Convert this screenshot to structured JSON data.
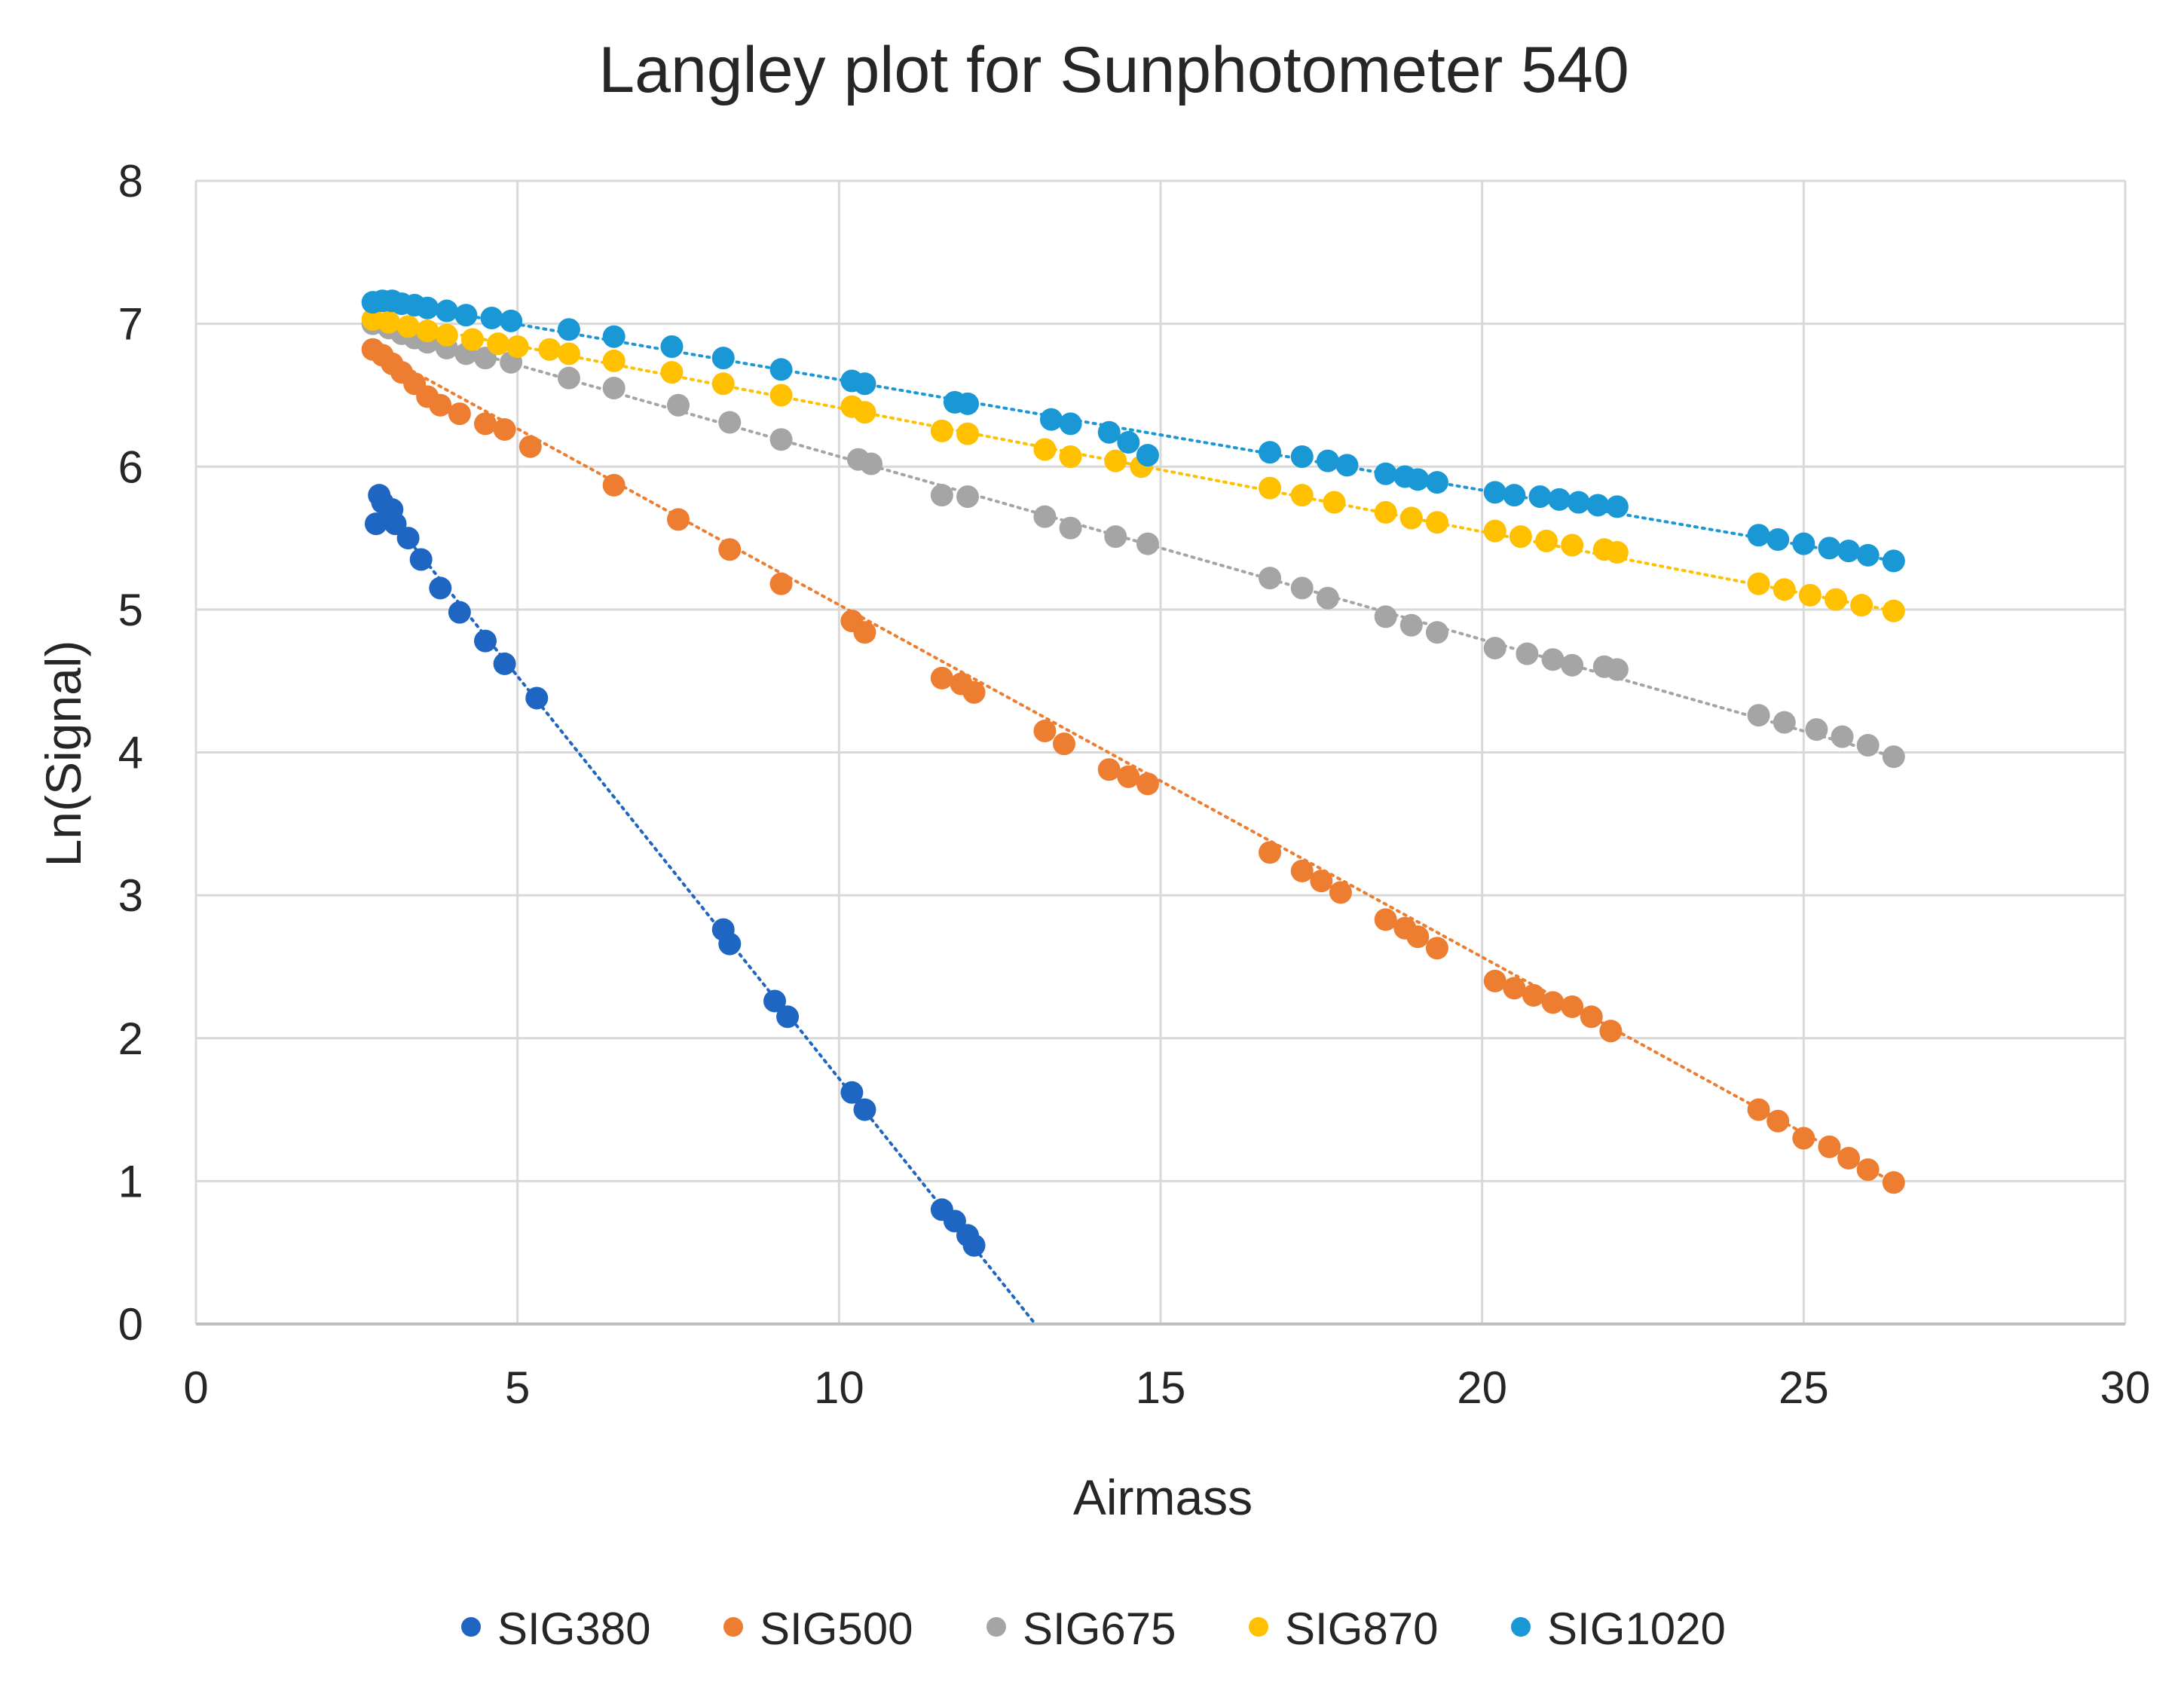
{
  "chart_data": {
    "type": "scatter",
    "title": "Langley plot for Sunphotometer 540",
    "xlabel": "Airmass",
    "ylabel": "Ln(Signal)",
    "xlim": [
      0,
      30
    ],
    "ylim": [
      0,
      8
    ],
    "xticks": [
      0,
      5,
      10,
      15,
      20,
      25,
      30
    ],
    "yticks": [
      0,
      1,
      2,
      3,
      4,
      5,
      6,
      7,
      8
    ],
    "xtick_labels": [
      "0",
      "5",
      "10",
      "15",
      "20",
      "25",
      "30"
    ],
    "ytick_labels": [
      "0",
      "1",
      "2",
      "3",
      "4",
      "5",
      "6",
      "7",
      "8"
    ],
    "grid": true,
    "legend_position": "bottom",
    "trendlines": "linear, dotted",
    "series": [
      {
        "name": "SIG380",
        "color": "#1F66C2",
        "x": [
          2.8,
          2.85,
          2.9,
          3.0,
          3.05,
          3.1,
          3.3,
          3.5,
          3.8,
          4.1,
          4.5,
          4.8,
          5.3,
          8.2,
          8.3,
          9.0,
          9.2,
          10.2,
          10.4,
          11.6,
          11.8,
          12.0,
          12.1
        ],
        "y": [
          5.6,
          5.8,
          5.75,
          5.65,
          5.7,
          5.6,
          5.5,
          5.35,
          5.15,
          4.98,
          4.78,
          4.62,
          4.38,
          2.76,
          2.66,
          2.26,
          2.15,
          1.62,
          1.5,
          0.8,
          0.72,
          0.62,
          0.55
        ],
        "trend": {
          "x": [
            2.75,
            13.05
          ],
          "y": [
            5.8,
            0.0
          ]
        }
      },
      {
        "name": "SIG500",
        "color": "#ED7D31",
        "x": [
          2.75,
          2.9,
          3.05,
          3.2,
          3.4,
          3.6,
          3.8,
          4.1,
          4.5,
          4.8,
          5.2,
          6.5,
          7.5,
          8.3,
          9.1,
          10.2,
          10.4,
          11.6,
          11.9,
          12.1,
          13.2,
          13.5,
          14.2,
          14.5,
          14.8,
          16.7,
          17.2,
          17.5,
          17.8,
          18.5,
          18.8,
          19.0,
          19.3,
          20.2,
          20.5,
          20.8,
          21.1,
          21.4,
          21.7,
          22.0,
          24.3,
          24.6,
          25.0,
          25.4,
          25.7,
          26.0,
          26.4
        ],
        "y": [
          6.82,
          6.78,
          6.72,
          6.66,
          6.58,
          6.49,
          6.43,
          6.37,
          6.3,
          6.26,
          6.14,
          5.87,
          5.63,
          5.42,
          5.18,
          4.92,
          4.84,
          4.52,
          4.48,
          4.42,
          4.15,
          4.06,
          3.88,
          3.83,
          3.78,
          3.3,
          3.17,
          3.1,
          3.02,
          2.83,
          2.77,
          2.71,
          2.63,
          2.4,
          2.35,
          2.3,
          2.25,
          2.22,
          2.15,
          2.05,
          1.5,
          1.42,
          1.3,
          1.24,
          1.16,
          1.08,
          0.99
        ],
        "trend": {
          "x": [
            2.75,
            26.4
          ],
          "y": [
            6.82,
            0.99
          ]
        }
      },
      {
        "name": "SIG675",
        "color": "#A5A5A5",
        "x": [
          2.75,
          3.0,
          3.2,
          3.4,
          3.6,
          3.9,
          4.2,
          4.5,
          4.9,
          5.8,
          6.5,
          7.5,
          8.3,
          9.1,
          10.3,
          10.5,
          11.6,
          12.0,
          13.2,
          13.6,
          14.3,
          14.8,
          16.7,
          17.2,
          17.6,
          18.5,
          18.9,
          19.3,
          20.2,
          20.7,
          21.1,
          21.4,
          21.9,
          22.1,
          24.3,
          24.7,
          25.2,
          25.6,
          26.0,
          26.4
        ],
        "y": [
          7.0,
          6.97,
          6.93,
          6.9,
          6.87,
          6.83,
          6.79,
          6.76,
          6.73,
          6.62,
          6.55,
          6.43,
          6.31,
          6.19,
          6.05,
          6.02,
          5.8,
          5.79,
          5.65,
          5.57,
          5.51,
          5.46,
          5.22,
          5.15,
          5.08,
          4.95,
          4.89,
          4.84,
          4.73,
          4.69,
          4.65,
          4.61,
          4.6,
          4.58,
          4.26,
          4.21,
          4.16,
          4.11,
          4.05,
          3.97
        ],
        "trend": {
          "x": [
            2.75,
            26.4
          ],
          "y": [
            7.0,
            3.97
          ]
        }
      },
      {
        "name": "SIG870",
        "color": "#FFC000",
        "x": [
          2.75,
          3.0,
          3.3,
          3.6,
          3.9,
          4.3,
          4.7,
          5.0,
          5.5,
          5.8,
          6.5,
          7.4,
          8.2,
          9.1,
          10.2,
          10.4,
          11.6,
          12.0,
          13.2,
          13.6,
          14.3,
          14.7,
          16.7,
          17.2,
          17.7,
          18.5,
          18.9,
          19.3,
          20.2,
          20.6,
          21.0,
          21.4,
          21.9,
          22.1,
          24.3,
          24.7,
          25.1,
          25.5,
          25.9,
          26.4
        ],
        "y": [
          7.03,
          7.01,
          6.98,
          6.95,
          6.92,
          6.89,
          6.86,
          6.84,
          6.82,
          6.79,
          6.74,
          6.66,
          6.58,
          6.5,
          6.42,
          6.38,
          6.25,
          6.23,
          6.12,
          6.07,
          6.04,
          6.0,
          5.85,
          5.8,
          5.75,
          5.68,
          5.64,
          5.61,
          5.55,
          5.51,
          5.48,
          5.45,
          5.42,
          5.4,
          5.18,
          5.14,
          5.1,
          5.07,
          5.03,
          4.99
        ],
        "trend": {
          "x": [
            2.75,
            26.4
          ],
          "y": [
            7.04,
            4.99
          ]
        }
      },
      {
        "name": "SIG1020",
        "color": "#1A98D6",
        "x": [
          2.75,
          2.9,
          3.05,
          3.2,
          3.4,
          3.6,
          3.9,
          4.2,
          4.6,
          4.9,
          5.8,
          6.5,
          7.4,
          8.2,
          9.1,
          10.2,
          10.4,
          11.8,
          12.0,
          13.3,
          13.6,
          14.2,
          14.5,
          14.8,
          16.7,
          17.2,
          17.6,
          17.9,
          18.5,
          18.8,
          19.0,
          19.3,
          20.2,
          20.5,
          20.9,
          21.2,
          21.5,
          21.8,
          22.1,
          24.3,
          24.6,
          25.0,
          25.4,
          25.7,
          26.0,
          26.4
        ],
        "y": [
          7.15,
          7.16,
          7.16,
          7.14,
          7.13,
          7.11,
          7.09,
          7.06,
          7.04,
          7.02,
          6.96,
          6.91,
          6.84,
          6.76,
          6.68,
          6.6,
          6.58,
          6.45,
          6.44,
          6.33,
          6.3,
          6.24,
          6.17,
          6.08,
          6.1,
          6.07,
          6.04,
          6.01,
          5.95,
          5.93,
          5.91,
          5.89,
          5.82,
          5.8,
          5.79,
          5.77,
          5.75,
          5.73,
          5.72,
          5.52,
          5.49,
          5.46,
          5.43,
          5.41,
          5.38,
          5.34
        ],
        "trend": {
          "x": [
            2.75,
            26.4
          ],
          "y": [
            7.17,
            5.34
          ]
        }
      }
    ]
  }
}
